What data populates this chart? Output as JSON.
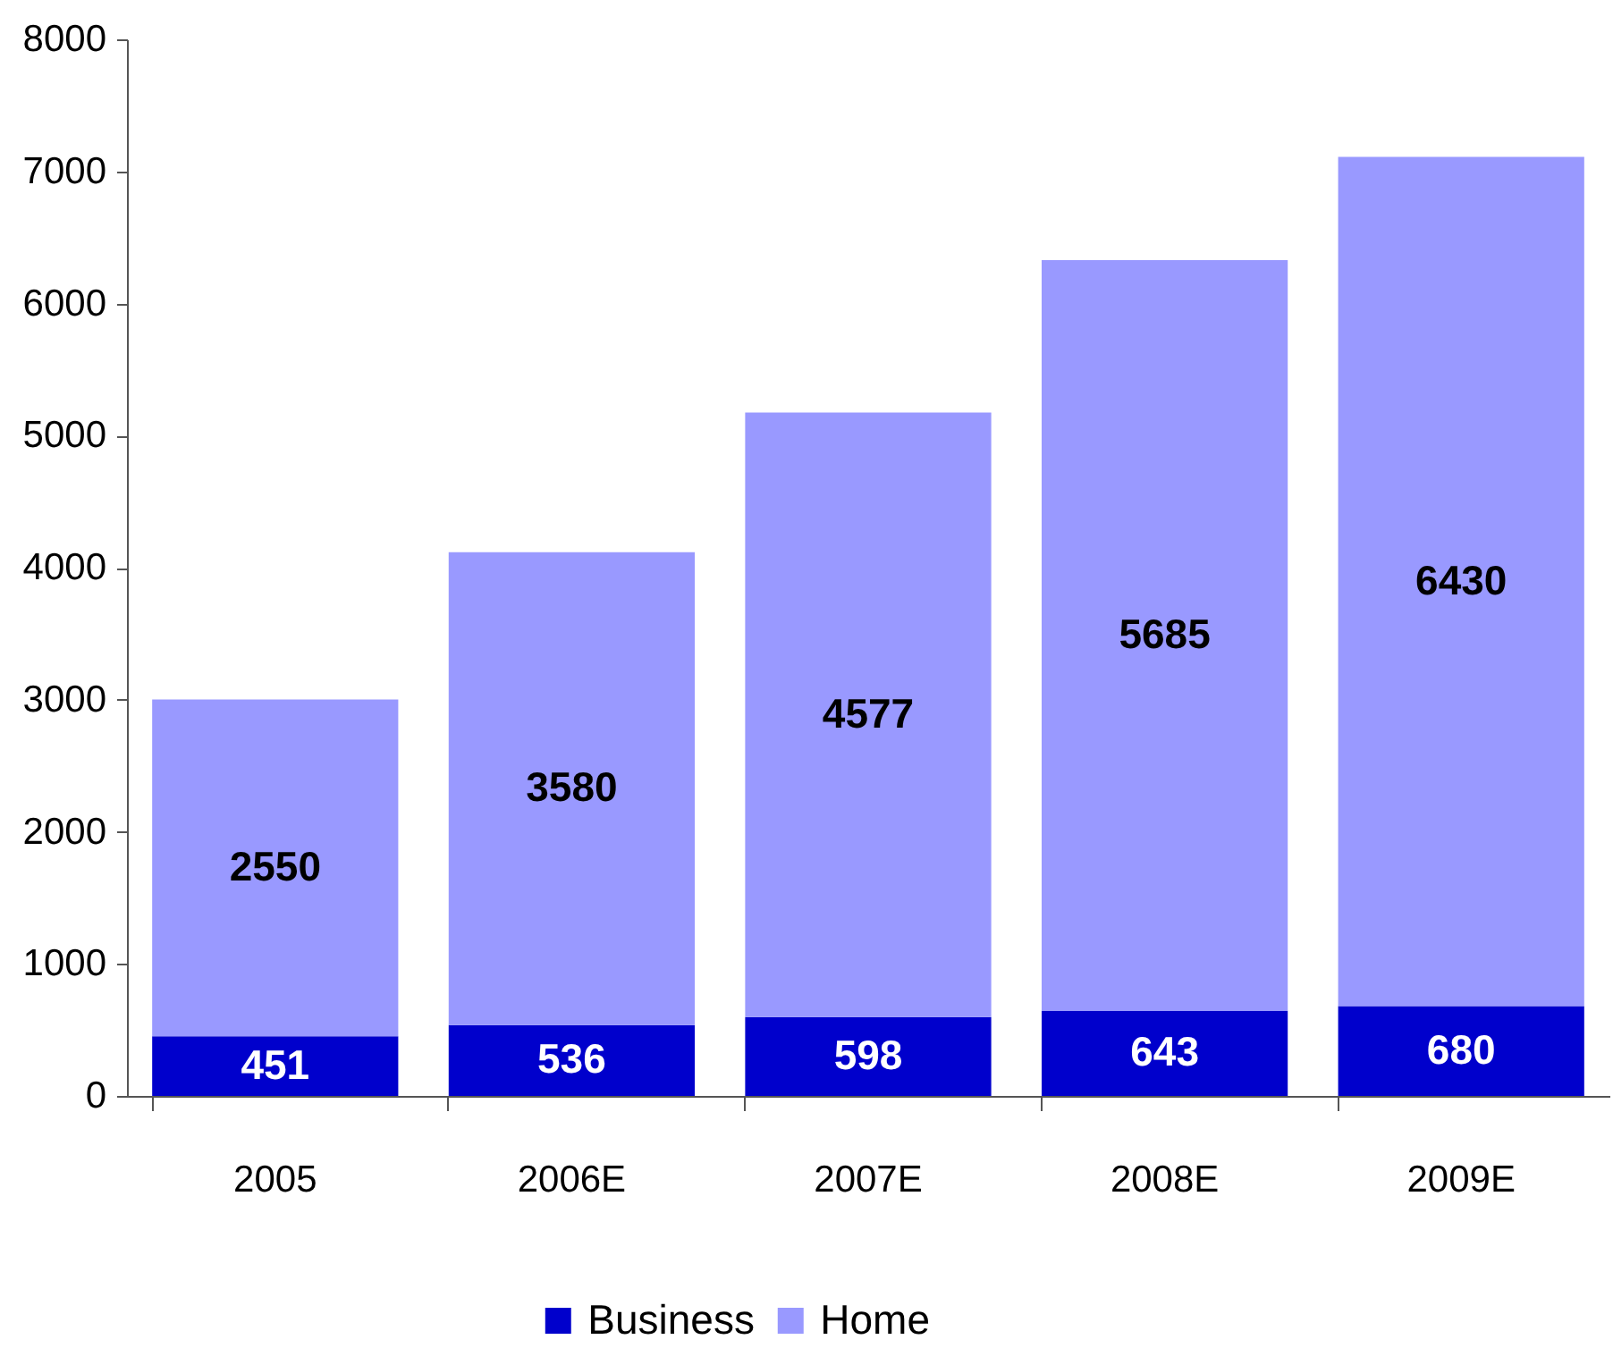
{
  "chart_data": {
    "type": "bar",
    "stacked": true,
    "categories": [
      "2005",
      "2006E",
      "2007E",
      "2008E",
      "2009E"
    ],
    "series": [
      {
        "name": "Business",
        "color": "#0000cc",
        "values": [
          451,
          536,
          598,
          643,
          680
        ]
      },
      {
        "name": "Home",
        "color": "#9999ff",
        "values": [
          2550,
          3580,
          4577,
          5685,
          6430
        ]
      }
    ],
    "ylim": [
      0,
      8000
    ],
    "yticks": [
      0,
      1000,
      2000,
      3000,
      4000,
      5000,
      6000,
      7000,
      8000
    ],
    "data_labels": true,
    "legend": "bottom"
  }
}
